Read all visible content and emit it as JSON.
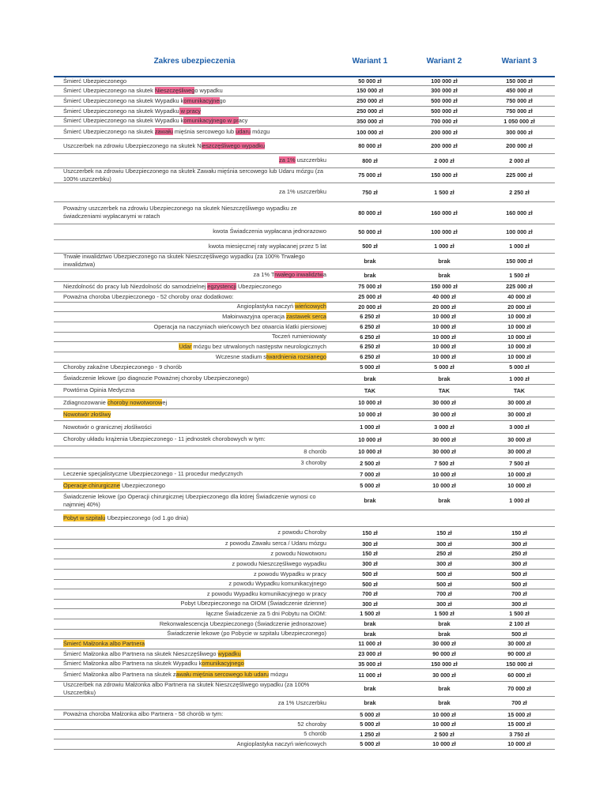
{
  "header": {
    "title": "Zakres ubezpieczenia",
    "columns": [
      "Wariant 1",
      "Wariant 2",
      "Wariant 3"
    ]
  },
  "table": {
    "rows": [
      {
        "label": "Śmierć Ubezpieczonego",
        "values": [
          "50 000 zł",
          "100 000 zł",
          "150 000 zł"
        ]
      },
      {
        "label": [
          "Śmierć Ubezpieczonego na skutek ",
          {
            "text": "Nieszczęśliweg",
            "highlight": "#f06a95"
          },
          "o wypadku"
        ],
        "values": [
          "150 000 zł",
          "300 000 zł",
          "450 000 zł"
        ]
      },
      {
        "label": [
          "Śmierć Ubezpieczonego na skutek Wypadku k",
          {
            "text": "omunikacyjne",
            "highlight": "#f06a95"
          },
          "go"
        ],
        "values": [
          "250 000 zł",
          "500 000 zł",
          "750 000 zł"
        ]
      },
      {
        "label": [
          "Śmierć Ubezpieczonego na skutek Wypadku",
          {
            "text": " w pracy",
            "highlight": "#f06a95"
          }
        ],
        "values": [
          "250 000 zł",
          "500 000 zł",
          "750 000 zł"
        ]
      },
      {
        "label": [
          "Śmierć Ubezpieczonego na skutek Wypadku k",
          {
            "text": "omunikacyjnego w pr",
            "highlight": "#f06a95"
          },
          "acy"
        ],
        "values": [
          "350 000 zł",
          "700 000 zł",
          "1 050 000 zł"
        ]
      },
      {
        "label": [
          "Śmierć Ubezpieczonego na skutek ",
          {
            "text": "zawału",
            "highlight": "#f06a95"
          },
          " mięśnia sercowego lub ",
          {
            "text": "udaru",
            "highlight": "#f06a95"
          },
          " mózgu"
        ],
        "values": [
          "100 000 zł",
          "200 000 zł",
          "300 000 zł"
        ]
      },
      {
        "label": [
          "Uszczerbek na zdrowiu Ubezpieczonego na skutek N",
          {
            "text": "ieszczęśliwego wypadku",
            "highlight": "#f06a95"
          }
        ],
        "values": [
          "80 000 zł",
          "200 000 zł",
          "200 000 zł"
        ]
      },
      {
        "label": [
          {
            "text": "za 1%",
            "highlight": "#f06a95"
          },
          " uszczerbku"
        ],
        "align": "right",
        "values": [
          "800 zł",
          "2 000 zł",
          "2 000 zł"
        ]
      },
      {
        "label": "Uszczerbek na zdrowiu Ubezpieczonego na skutek Zawału mięśnia sercowego lub Udaru mózgu (za 100% uszczerbku)",
        "values": [
          "75 000 zł",
          "150 000 zł",
          "225 000 zł"
        ]
      },
      {
        "label": "za 1% uszczerbku",
        "align": "right",
        "values": [
          "750 zł",
          "1 500 zł",
          "2 250 zł"
        ]
      },
      {
        "label": "Poważny uszczerbek na zdrowiu Ubezpieczonego na skutek Nieszczęśliwego wypadku ze świadczeniami wypłacanymi w ratach",
        "values": [
          "80 000 zł",
          "160 000 zł",
          "160 000 zł"
        ]
      },
      {
        "label": "kwota Świadczenia wypłacana jednorazowo",
        "align": "right",
        "values": [
          "50 000 zł",
          "100 000 zł",
          "100 000 zł"
        ]
      },
      {
        "label": "kwota miesięcznej raty wypłacanej przez 5 lat",
        "align": "right",
        "values": [
          "500 zł",
          "1 000 zł",
          "1 000 zł"
        ]
      },
      {
        "label": "Trwałe inwalidztwo Ubezpieczonego na skutek Nieszczęśliwego wypadku (za 100% Trwałego inwalidztwa)",
        "values": [
          "brak",
          "brak",
          "150 000 zł"
        ]
      },
      {
        "label": [
          "za 1% T",
          {
            "text": "rwałego inwalidztw",
            "highlight": "#f06a95"
          },
          "a"
        ],
        "align": "right",
        "values": [
          "brak",
          "brak",
          "1 500 zł"
        ]
      },
      {
        "label": [
          "Niezdolność do pracy lub Niezdolność do samodzielnej ",
          {
            "text": "egzystencji",
            "highlight": "#f06a95"
          },
          " Ubezpieczonego"
        ],
        "values": [
          "75 000 zł",
          "150 000 zł",
          "225 000 zł"
        ]
      },
      {
        "label": "Poważna choroba Ubezpieczonego - 52 choroby oraz dodatkowo:",
        "values": [
          "25 000 zł",
          "40 000 zł",
          "40 000 zł"
        ]
      },
      {
        "label": [
          "Angioplastyka naczyń ",
          {
            "text": "wieńcowych",
            "highlight": "#f7c331"
          }
        ],
        "align": "right",
        "values": [
          "20 000 zł",
          "20 000 zł",
          "20 000 zł"
        ]
      },
      {
        "label": [
          "Małoinwazyjna operacja ",
          {
            "text": "zastawek serca",
            "highlight": "#f7c331"
          }
        ],
        "align": "right",
        "values": [
          "6 250 zł",
          "10 000 zł",
          "10 000 zł"
        ]
      },
      {
        "label": "Operacja na naczyniach wieńcowych bez otwarcia klatki piersiowej",
        "align": "right",
        "values": [
          "6 250 zł",
          "10 000 zł",
          "10 000 zł"
        ]
      },
      {
        "label": "Toczeń rumieniowaty",
        "align": "right",
        "values": [
          "6 250 zł",
          "10 000 zł",
          "10 000 zł"
        ]
      },
      {
        "label": [
          {
            "text": "Udar",
            "highlight": "#f7c331"
          },
          " mózgu bez utrwalonych następstw neurologicznych"
        ],
        "align": "right",
        "values": [
          "6 250 zł",
          "10 000 zł",
          "10 000 zł"
        ]
      },
      {
        "label": [
          "Wczesne stadium s",
          {
            "text": "twardnienia rozsianego",
            "highlight": "#f7c331"
          }
        ],
        "align": "right",
        "values": [
          "6 250 zł",
          "10 000 zł",
          "10 000 zł"
        ]
      },
      {
        "label": "Choroby zakaźne Ubezpieczonego - 9 chorób",
        "values": [
          "5 000 zł",
          "5 000 zł",
          "5 000 zł"
        ]
      },
      {
        "label": "Świadczenie lekowe (po diagnozie Poważnej choroby Ubezpieczonego)",
        "values": [
          "brak",
          "brak",
          "1 000 zł"
        ]
      },
      {
        "label": "Powtórna Opinia Medyczna",
        "values": [
          "TAK",
          "TAK",
          "TAK"
        ]
      },
      {
        "label": [
          "Zdiagnozowanie ",
          {
            "text": "choroby nowotworow",
            "highlight": "#f7c331"
          },
          "ej"
        ],
        "values": [
          "10 000 zł",
          "30 000 zł",
          "30 000 zł"
        ]
      },
      {
        "label": [
          {
            "text": "Nowotwór złośliwy",
            "highlight": "#f7c331"
          }
        ],
        "values": [
          "10 000 zł",
          "30 000 zł",
          "30 000 zł"
        ]
      },
      {
        "label": "Nowotwór o granicznej złośliwości",
        "values": [
          "1 000 zł",
          "3 000 zł",
          "3 000 zł"
        ]
      },
      {
        "label": "Choroby układu krążenia Ubezpieczonego - 11 jednostek chorobowych w tym:",
        "values": [
          "10 000 zł",
          "30 000 zł",
          "30 000 zł"
        ]
      },
      {
        "label": "8 chorób",
        "align": "right",
        "values": [
          "10 000 zł",
          "30 000 zł",
          "30 000 zł"
        ]
      },
      {
        "label": "3 choroby",
        "align": "right",
        "values": [
          "2 500 zł",
          "7 500 zł",
          "7 500 zł"
        ]
      },
      {
        "label": "Leczenie specjalistyczne Ubezpieczonego - 11 procedur medycznych",
        "values": [
          "7 000 zł",
          "10 000 zł",
          "10 000 zł"
        ]
      },
      {
        "label": [
          {
            "text": "Operacje chirurgiczne",
            "highlight": "#f7c331"
          },
          " Ubezpieczonego"
        ],
        "values": [
          "5 000 zł",
          "10 000 zł",
          "10 000 zł"
        ]
      },
      {
        "label": "Świadczenie lekowe (po Operacji chirurgicznej Ubezpieczonego dla której Świadczenie wynosi co najmniej 40%)",
        "values": [
          "brak",
          "brak",
          "1 000 zł"
        ]
      },
      {
        "label": [
          {
            "text": "Pobyt w szpitalu",
            "highlight": "#f7c331"
          },
          " Ubezpieczonego (od 1.go dnia)"
        ]
      },
      {
        "label": "z powodu Choroby",
        "align": "right",
        "values": [
          "150 zł",
          "150 zł",
          "150 zł"
        ]
      },
      {
        "label": "z powodu Zawału serca / Udaru mózgu",
        "align": "right",
        "values": [
          "300 zł",
          "300 zł",
          "300 zł"
        ]
      },
      {
        "label": "z powodu Nowotworu",
        "align": "right",
        "values": [
          "150 zł",
          "250 zł",
          "250 zł"
        ]
      },
      {
        "label": "z powodu Nieszczęśliwego wypadku",
        "align": "right",
        "values": [
          "300 zł",
          "300 zł",
          "300 zł"
        ]
      },
      {
        "label": "z powodu Wypadku w pracy",
        "align": "right",
        "values": [
          "500 zł",
          "500 zł",
          "500 zł"
        ]
      },
      {
        "label": "z powodu Wypadku komunikacyjnego",
        "align": "right",
        "values": [
          "500 zł",
          "500 zł",
          "500 zł"
        ]
      },
      {
        "label": "z powodu Wypadku komunikacyjnego w pracy",
        "align": "right",
        "values": [
          "700 zł",
          "700 zł",
          "700 zł"
        ]
      },
      {
        "label": "Pobyt Ubezpieczonego na OIOM (Świadczenie dzienne)",
        "align": "right",
        "values": [
          "300 zł",
          "300 zł",
          "300 zł"
        ]
      },
      {
        "label": "łączne Świadczenie za 5 dni Pobytu na OIOM:",
        "align": "right",
        "values": [
          "1 500 zł",
          "1 500 zł",
          "1 500 zł"
        ]
      },
      {
        "label": "Rekonwalescencja Ubezpieczonego (Świadczenie jednorazowe)",
        "align": "right",
        "values": [
          "brak",
          "brak",
          "2 100 zł"
        ]
      },
      {
        "label": "Świadczenie lekowe (po Pobycie w szpitalu Ubezpieczonego)",
        "align": "right",
        "values": [
          "brak",
          "brak",
          "500 zł"
        ]
      },
      {
        "label": [
          {
            "text": "Śmierć Małżonka albo Partnera",
            "highlight": "#f7c331"
          }
        ],
        "values": [
          "11 000 zł",
          "30 000 zł",
          "30 000 zł"
        ]
      },
      {
        "label": [
          "Śmierć Małżonka albo Partnera na skutek Nieszczęśliwego ",
          {
            "text": "wypadku",
            "highlight": "#f7c331"
          }
        ],
        "values": [
          "23 000 zł",
          "90 000 zł",
          "90 000 zł"
        ]
      },
      {
        "label": [
          "Śmierć Małżonka albo Partnera na skutek Wypadku k",
          {
            "text": "omunikacyjnego",
            "highlight": "#f7c331"
          }
        ],
        "values": [
          "35 000 zł",
          "150 000 zł",
          "150 000 zł"
        ]
      },
      {
        "label": [
          "Śmierć Małżonka albo Partnera na skutek z",
          {
            "text": "awału mięśnia sercowego lub udaru",
            "highlight": "#f7c331"
          },
          " mózgu"
        ],
        "values": [
          "11 000 zł",
          "30 000 zł",
          "60 000 zł"
        ]
      },
      {
        "label": "Uszczerbek na zdrowiu Małżonka albo Partnera na skutek Nieszczęśliwego wypadku (za 100% Uszczerbku)",
        "values": [
          "brak",
          "brak",
          "70 000 zł"
        ]
      },
      {
        "label": "za 1% Uszczerbku",
        "align": "right",
        "values": [
          "brak",
          "brak",
          "700 zł"
        ]
      },
      {
        "label": "Poważna choroba Małżonka albo Partnera - 58 chorób w tym:",
        "values": [
          "5 000 zł",
          "10 000 zł",
          "15 000 zł"
        ]
      },
      {
        "label": "52 choroby",
        "align": "right",
        "values": [
          "5 000 zł",
          "10 000 zł",
          "15 000 zł"
        ]
      },
      {
        "label": "5 chorób",
        "align": "right",
        "values": [
          "1 250 zł",
          "2 500 zł",
          "3 750 zł"
        ]
      },
      {
        "label": "Angioplastyka naczyń wieńcowych",
        "align": "right",
        "values": [
          "5 000 zł",
          "10 000 zł",
          "10 000 zł"
        ]
      }
    ]
  }
}
